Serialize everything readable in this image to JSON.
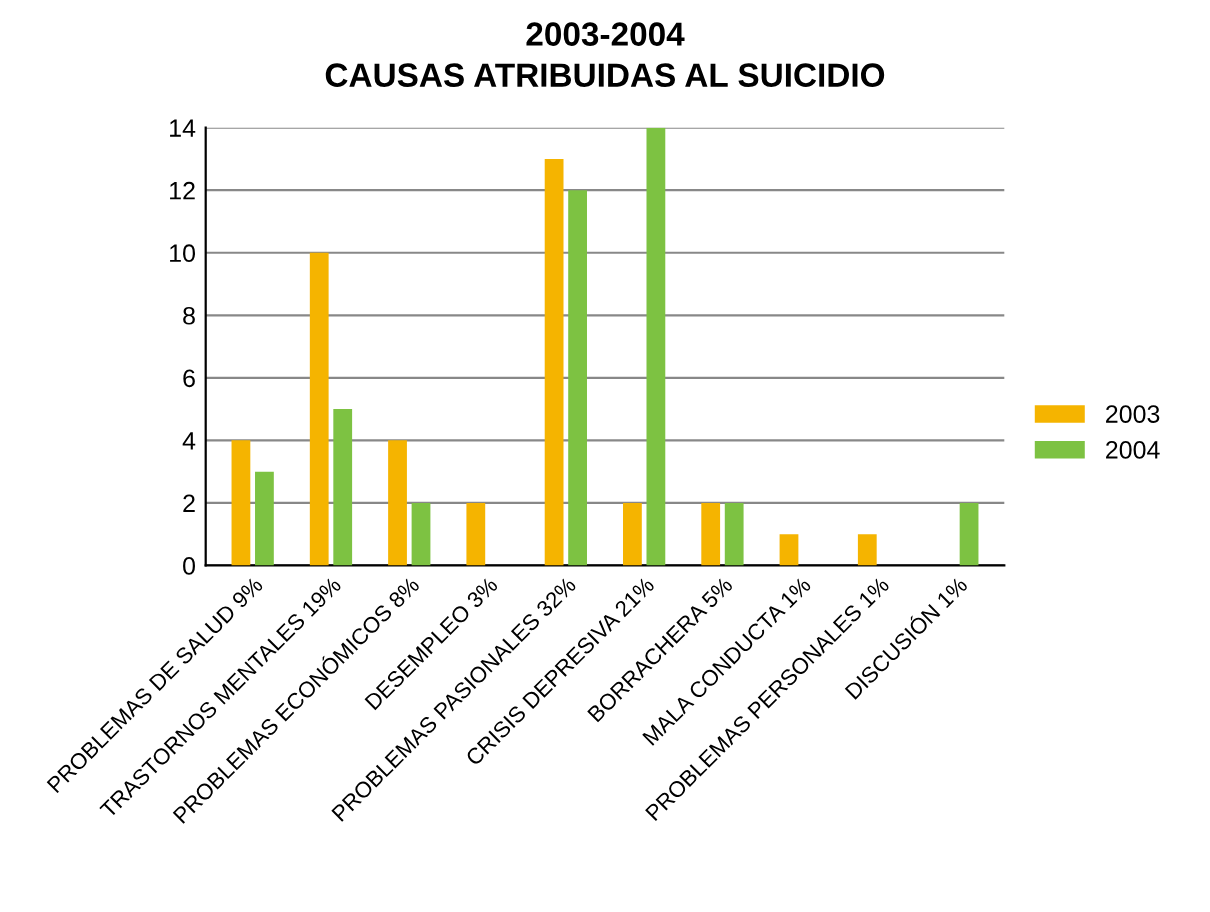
{
  "chart_data": {
    "type": "bar",
    "title": "2003-2004",
    "subtitle": "CAUSAS ATRIBUIDAS AL SUICIDIO",
    "categories": [
      "PROBLEMAS DE SALUD 9%",
      "TRASTORNOS MENTALES 19%",
      "PROBLEMAS ECONÓMICOS 8%",
      "DESEMPLEO 3%",
      "PROBLEMAS PASIONALES 32%",
      "CRISIS DEPRESIVA 21%",
      "BORRACHERA 5%",
      "MALA CONDUCTA 1%",
      "PROBLEMAS PERSONALES 1%",
      "DISCUSIÓN 1%"
    ],
    "series": [
      {
        "name": "2003",
        "color": "#f5b400",
        "values": [
          4,
          10,
          4,
          2,
          13,
          2,
          2,
          1,
          1,
          null
        ]
      },
      {
        "name": "2004",
        "color": "#7dc242",
        "values": [
          3,
          5,
          2,
          null,
          12,
          14,
          2,
          null,
          null,
          2
        ]
      }
    ],
    "ylim": [
      0,
      14
    ],
    "yticks": [
      0,
      2,
      4,
      6,
      8,
      10,
      12,
      14
    ],
    "grid": "y",
    "legend": "right"
  }
}
